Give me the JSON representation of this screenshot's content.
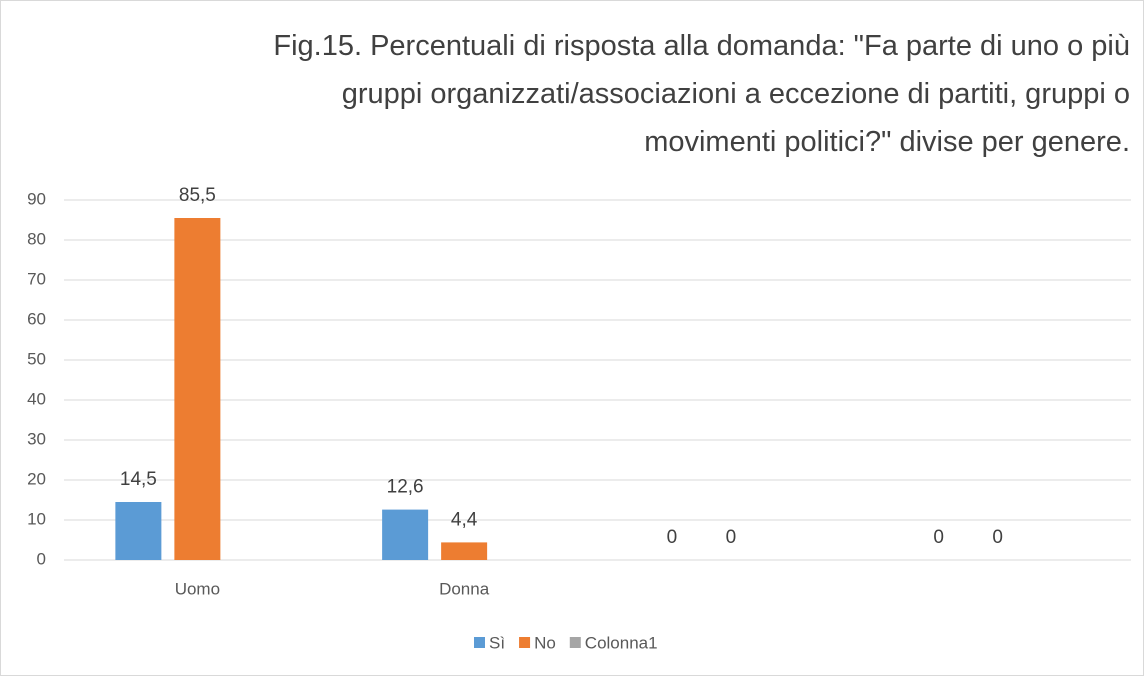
{
  "chart_data": {
    "type": "bar",
    "title": "Fig.15. Percentuali di risposta alla domanda: \"Fa parte di uno o più gruppi organizzati/associazioni a eccezione di partiti, gruppi o movimenti politici?\" divise per genere.",
    "categories": [
      "Uomo",
      "Donna",
      null,
      null
    ],
    "series": [
      {
        "name": "Sì",
        "color": "#5b9bd5",
        "values": [
          14.5,
          12.6,
          0,
          0
        ],
        "value_labels": [
          "14,5",
          "12,6",
          "0",
          "0"
        ]
      },
      {
        "name": "No",
        "color": "#ed7d31",
        "values": [
          85.5,
          4.4,
          0,
          0
        ],
        "value_labels": [
          "85,5",
          "4,4",
          "0",
          "0"
        ]
      },
      {
        "name": "Colonna1",
        "color": "#a5a5a5",
        "values": [
          null,
          null,
          null,
          null
        ]
      }
    ],
    "ylim": [
      0,
      90
    ],
    "yticks": [
      0,
      10,
      20,
      30,
      40,
      50,
      60,
      70,
      80,
      90
    ],
    "grid": true,
    "legend": "bottom"
  }
}
